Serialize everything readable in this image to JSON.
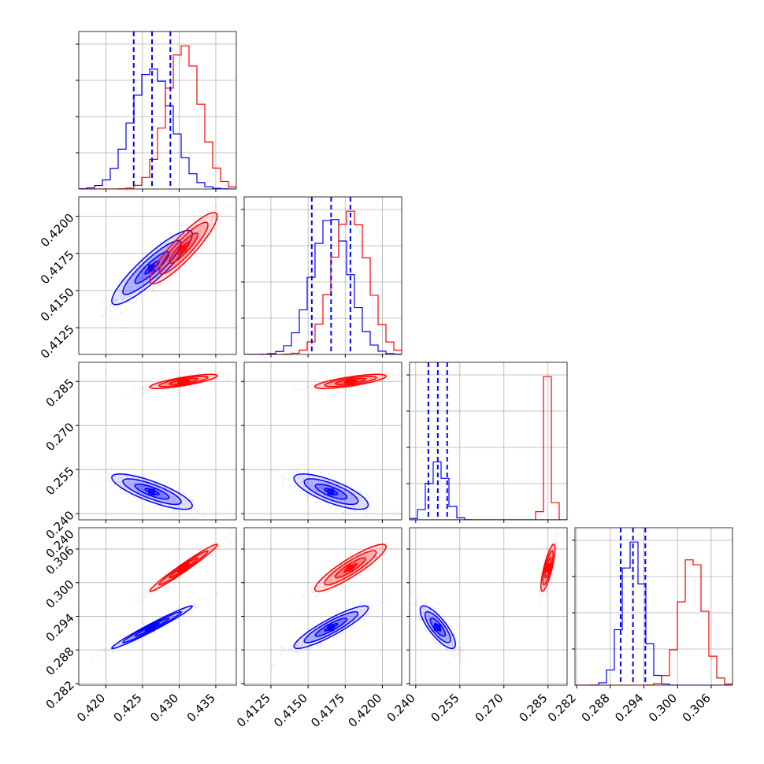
{
  "chart_data": {
    "type": "corner",
    "grid": true,
    "series": [
      {
        "name": "",
        "color": "#0000ff",
        "mean": [
          0.4263,
          0.41655,
          0.2475,
          0.29205
        ],
        "sd": [
          0.00275,
          0.00125,
          0.003,
          0.0019
        ],
        "corr": [
          [
            1,
            0.9,
            -0.8,
            0.98
          ],
          [
            0.9,
            1,
            -0.75,
            0.9
          ],
          [
            -0.8,
            -0.75,
            1,
            -0.8
          ],
          [
            0.98,
            0.9,
            -0.8,
            1
          ]
        ]
      },
      {
        "name": "",
        "color": "#ff0000",
        "mean": [
          0.4306,
          0.41785,
          0.285,
          0.30265
        ],
        "sd": [
          0.0023,
          0.0012,
          0.0012,
          0.0021
        ],
        "corr": [
          [
            1,
            0.9,
            0.8,
            0.98
          ],
          [
            0.9,
            1,
            0.75,
            0.9
          ],
          [
            0.8,
            0.75,
            1,
            0.8
          ],
          [
            0.98,
            0.9,
            0.8,
            1
          ]
        ]
      }
    ],
    "quantile_lines": {
      "color": "#0000ff",
      "style": "dashed",
      "values": [
        [
          0.4238,
          0.4263,
          0.4288
        ],
        [
          0.41525,
          0.41655,
          0.41785
        ],
        [
          0.2443,
          0.2475,
          0.2507
        ],
        [
          0.28985,
          0.29205,
          0.29425
        ]
      ]
    },
    "params": [
      {
        "range": [
          0.4163,
          0.4378
        ],
        "ticks": [
          0.42,
          0.425,
          0.43,
          0.435
        ],
        "tick_labels": [
          "0.420",
          "0.425",
          "0.430",
          "0.435"
        ]
      },
      {
        "range": [
          0.4107,
          0.4213
        ],
        "ticks": [
          0.4125,
          0.415,
          0.4175,
          0.42
        ],
        "tick_labels": [
          "0.4125",
          "0.4150",
          "0.4175",
          "0.4200"
        ]
      },
      {
        "range": [
          0.2379,
          0.2915
        ],
        "ticks": [
          0.24,
          0.255,
          0.27,
          0.285
        ],
        "tick_labels": [
          "0.240",
          "0.255",
          "0.270",
          "0.285"
        ]
      },
      {
        "range": [
          0.2817,
          0.3098
        ],
        "ticks": [
          0.282,
          0.288,
          0.294,
          0.3,
          0.306
        ],
        "tick_labels": [
          "0.282",
          "0.288",
          "0.294",
          "0.300",
          "0.306"
        ]
      }
    ],
    "row_axis": {
      "row1": {
        "ticks": [
          0.4125,
          0.415,
          0.4175,
          0.42
        ],
        "tick_labels": [
          "0.4125",
          "0.4150",
          "0.4175",
          "0.4200"
        ]
      },
      "row2": {
        "ticks": [
          0.24,
          0.255,
          0.27,
          0.285
        ],
        "tick_labels": [
          "0.240",
          "0.255",
          "0.270",
          "0.285"
        ]
      },
      "row3": {
        "ticks": [
          0.282,
          0.288,
          0.294,
          0.3,
          0.306
        ],
        "tick_labels": [
          "0.282",
          "0.288",
          "0.294",
          "0.300",
          "0.306"
        ],
        "extra_top_label": "0.240"
      }
    }
  }
}
